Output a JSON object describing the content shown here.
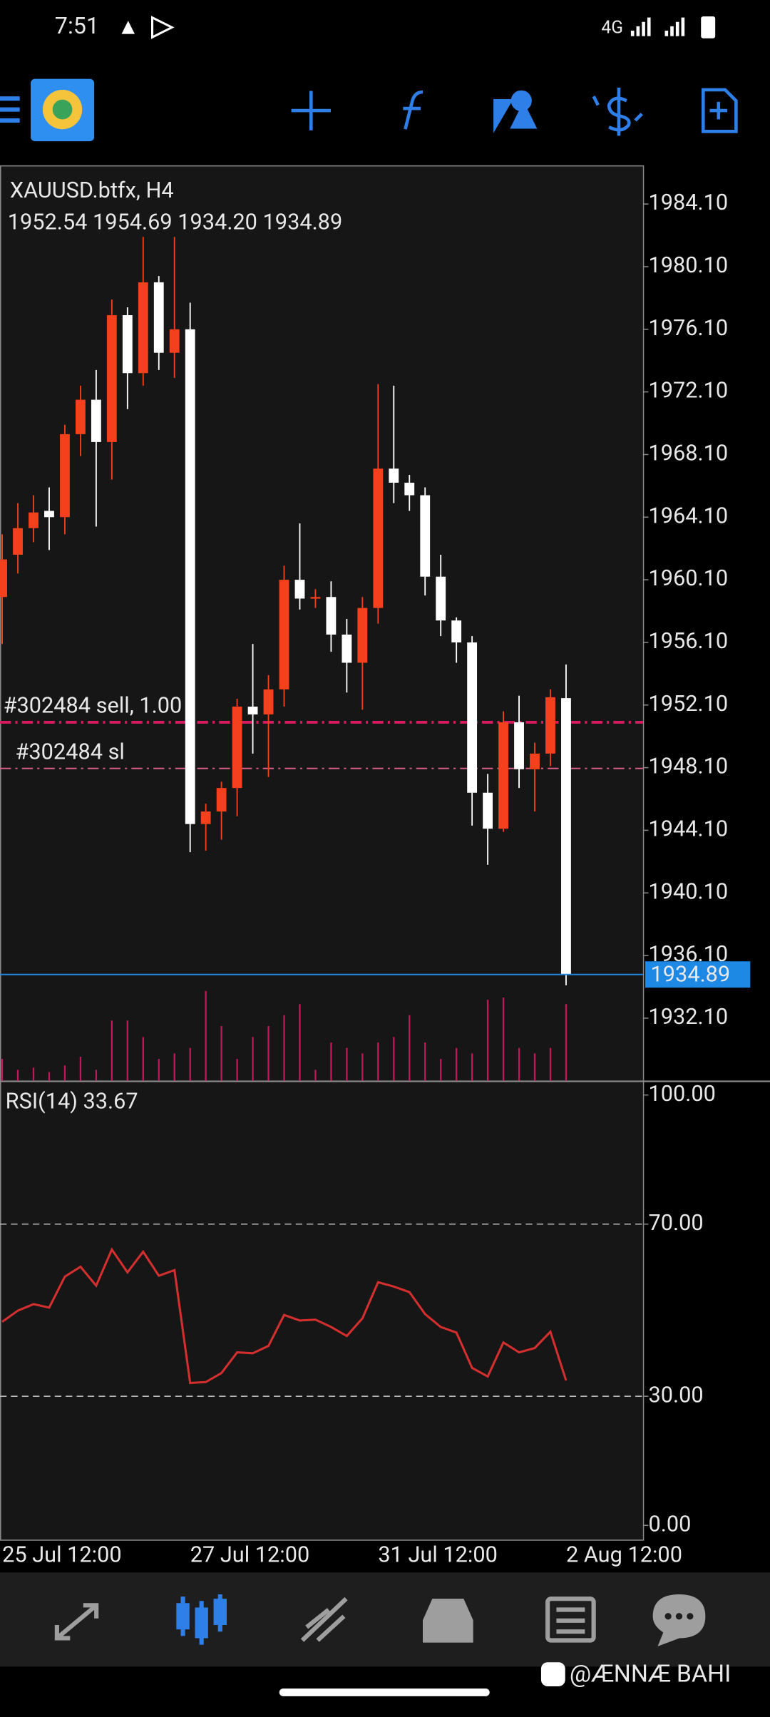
{
  "status_bar": {
    "time": "7:51",
    "network": "4G"
  },
  "chart_data": [
    {
      "type": "candlestick",
      "title": "XAUUSD.btfx, H4",
      "ohlc_text": "1952.54 1954.69 1934.20 1934.89",
      "categories": [
        "25 Jul 12:00",
        null,
        null,
        null,
        null,
        null,
        null,
        null,
        null,
        null,
        null,
        null,
        "27 Jul 12:00",
        null,
        null,
        null,
        null,
        null,
        null,
        null,
        null,
        null,
        null,
        null,
        "31 Jul 12:00",
        null,
        null,
        null,
        null,
        null,
        null,
        null,
        null,
        null,
        null,
        null,
        "2 Aug 12:00"
      ],
      "open": [
        1959.0,
        1961.7,
        1963.4,
        1964.5,
        1964.1,
        1969.4,
        1971.6,
        1968.9,
        1977.0,
        1973.3,
        1979.1,
        1974.6,
        1976.1,
        1944.5,
        1945.3,
        1946.8,
        1952.0,
        1951.5,
        1953.1,
        1960.1,
        1958.9,
        1959.0,
        1956.6,
        1954.8,
        1958.3,
        1967.2,
        1966.3,
        1965.5,
        1960.3,
        1957.5,
        1956.1,
        1946.5,
        1944.2,
        1951.0,
        1948.0,
        1949.0,
        1952.54
      ],
      "high": [
        1963.0,
        1965.0,
        1965.5,
        1966.0,
        1970.0,
        1972.5,
        1973.5,
        1978.0,
        1977.5,
        1982.0,
        1979.5,
        1982.0,
        1977.8,
        1945.8,
        1947.2,
        1952.5,
        1956.0,
        1954.0,
        1961.0,
        1963.7,
        1959.5,
        1960.0,
        1957.6,
        1959.0,
        1972.6,
        1972.5,
        1966.8,
        1966.0,
        1961.7,
        1957.7,
        1956.5,
        1947.7,
        1951.7,
        1952.7,
        1949.7,
        1953.1,
        1954.69
      ],
      "low": [
        1956.0,
        1960.5,
        1962.5,
        1962.0,
        1963.0,
        1968.0,
        1963.5,
        1966.5,
        1971.0,
        1972.5,
        1973.5,
        1973.0,
        1942.7,
        1942.8,
        1943.5,
        1945.0,
        1949.0,
        1947.5,
        1952.0,
        1958.2,
        1958.3,
        1955.5,
        1952.9,
        1951.8,
        1957.3,
        1965.0,
        1964.5,
        1959.1,
        1956.5,
        1954.8,
        1944.4,
        1941.9,
        1944.0,
        1946.8,
        1945.3,
        1948.2,
        1934.2
      ],
      "close": [
        1961.4,
        1963.4,
        1964.4,
        1964.1,
        1969.4,
        1971.6,
        1968.9,
        1977.0,
        1973.3,
        1979.1,
        1974.6,
        1976.1,
        1944.5,
        1945.3,
        1946.8,
        1952.0,
        1951.5,
        1953.1,
        1960.1,
        1958.9,
        1959.0,
        1956.6,
        1954.8,
        1958.3,
        1967.2,
        1966.3,
        1965.5,
        1960.3,
        1957.5,
        1956.1,
        1946.5,
        1944.2,
        1951.0,
        1948.0,
        1949.0,
        1952.6,
        1934.89
      ],
      "up_color": "#f4401c",
      "down_color": "#ffffff",
      "ylim": [
        1928.1,
        1986.5
      ],
      "yticks": [
        {
          "value": 1984.1,
          "label": "1984.10"
        },
        {
          "value": 1980.1,
          "label": "1980.10"
        },
        {
          "value": 1976.1,
          "label": "1976.10"
        },
        {
          "value": 1972.1,
          "label": "1972.10"
        },
        {
          "value": 1968.1,
          "label": "1968.10"
        },
        {
          "value": 1964.1,
          "label": "1964.10"
        },
        {
          "value": 1960.1,
          "label": "1960.10"
        },
        {
          "value": 1956.1,
          "label": "1956.10"
        },
        {
          "value": 1952.1,
          "label": "1952.10"
        },
        {
          "value": 1948.1,
          "label": "1948.10"
        },
        {
          "value": 1944.1,
          "label": "1944.10"
        },
        {
          "value": 1940.1,
          "label": "1940.10"
        },
        {
          "value": 1936.1,
          "label": "1936.10"
        },
        {
          "value": 1932.1,
          "label": "1932.10"
        }
      ],
      "volume": {
        "values": [
          20,
          10,
          12,
          8,
          14,
          22,
          10,
          55,
          55,
          40,
          20,
          25,
          30,
          82,
          50,
          20,
          40,
          50,
          60,
          70,
          10,
          35,
          30,
          25,
          35,
          40,
          60,
          35,
          20,
          30,
          25,
          74,
          76,
          30,
          25,
          30,
          70
        ],
        "color": "#c2185b"
      },
      "lines": [
        {
          "label": "#302484 sell, 1.00",
          "value": 1951.0,
          "color": "#d81b60"
        },
        {
          "label": "#302484 sl",
          "value": 1948.05,
          "color": "#e0608a"
        }
      ],
      "current_price": {
        "value": 1934.89,
        "color": "#1e88e5"
      }
    },
    {
      "type": "line",
      "title": "RSI(14) 33.67",
      "values": [
        47.3,
        49.9,
        51.4,
        50.6,
        57.8,
        60.1,
        55.7,
        64.1,
        58.8,
        63.6,
        58.0,
        59.3,
        33.1,
        33.3,
        35.4,
        40.2,
        40.0,
        41.7,
        48.9,
        47.6,
        47.8,
        46.1,
        44.0,
        48.1,
        56.5,
        55.5,
        54.2,
        49.1,
        46.1,
        44.8,
        36.6,
        34.6,
        42.5,
        40.2,
        41.2,
        45.0,
        33.67
      ],
      "color": "#d32f2f",
      "ylim": [
        0,
        100
      ],
      "yticks": [
        {
          "value": 100,
          "label": "100.00"
        },
        {
          "value": 70,
          "label": "70.00"
        },
        {
          "value": 30,
          "label": "30.00"
        },
        {
          "value": 0,
          "label": "0.00"
        }
      ],
      "levels": [
        30,
        70
      ]
    }
  ],
  "watermark": "@ÆNNÆ BAHI"
}
